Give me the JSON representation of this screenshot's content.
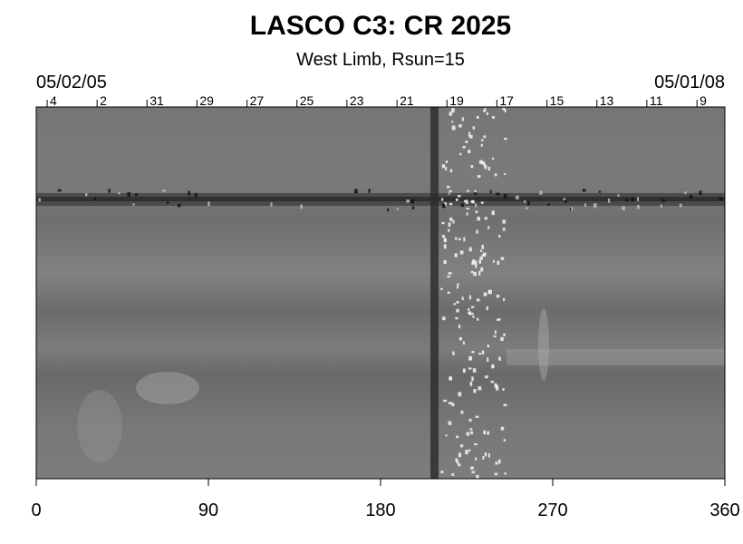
{
  "chart_data": {
    "type": "synoptic-map",
    "title": "LASCO C3: CR 2025",
    "subtitle": "West Limb, Rsun=15",
    "start_date": "05/02/05",
    "end_date": "05/01/08",
    "xlim": [
      0,
      360
    ],
    "xticks": [
      0,
      90,
      180,
      270,
      360
    ],
    "top_ticks": [
      {
        "value": 5.7,
        "label": "4"
      },
      {
        "value": 31.8,
        "label": "2"
      },
      {
        "value": 57.9,
        "label": "31"
      },
      {
        "value": 84,
        "label": "29"
      },
      {
        "value": 110.2,
        "label": "27"
      },
      {
        "value": 136.3,
        "label": "25"
      },
      {
        "value": 162.4,
        "label": "23"
      },
      {
        "value": 188.6,
        "label": "21"
      },
      {
        "value": 214.7,
        "label": "19"
      },
      {
        "value": 240.8,
        "label": "17"
      },
      {
        "value": 267,
        "label": "15"
      },
      {
        "value": 293.1,
        "label": "13"
      },
      {
        "value": 319.2,
        "label": "11"
      },
      {
        "value": 345.4,
        "label": "9"
      }
    ]
  }
}
